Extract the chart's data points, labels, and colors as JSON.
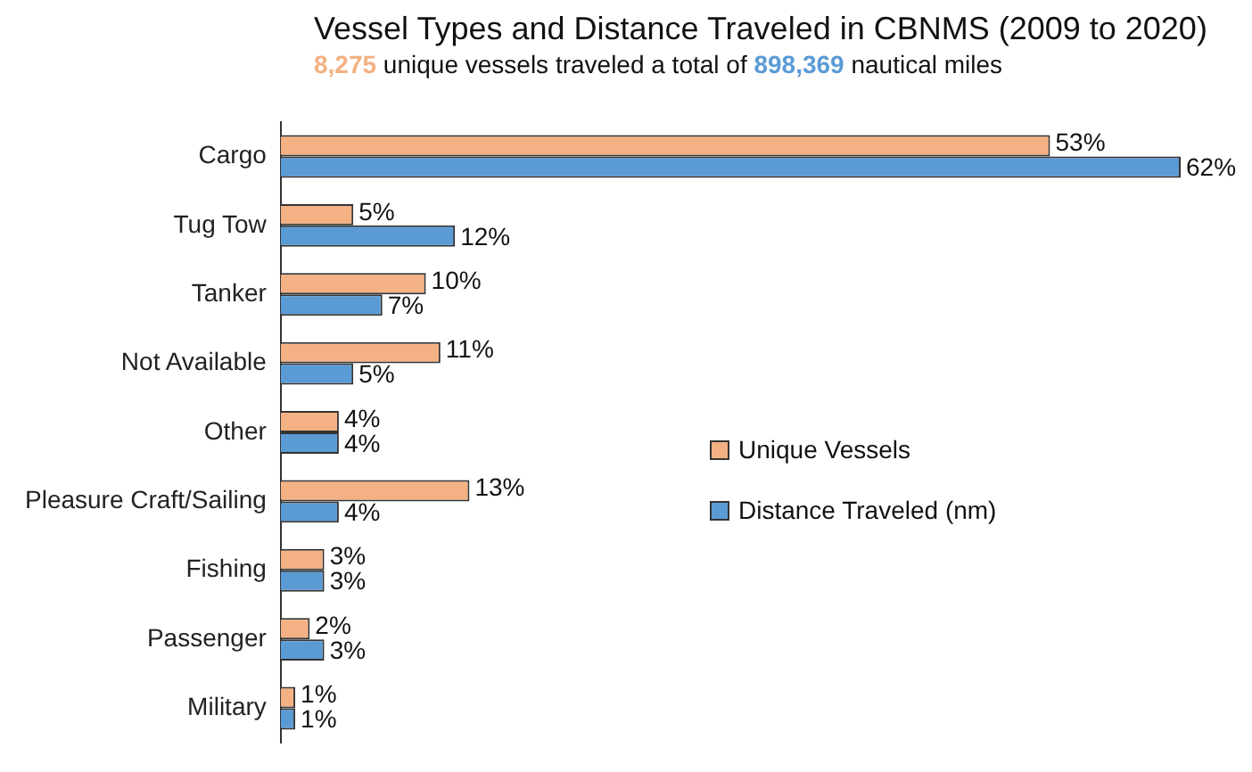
{
  "chart_data": {
    "type": "bar",
    "orientation": "horizontal",
    "title": "Vessel Types and Distance Traveled in CBNMS (2009 to 2020)",
    "subtitle": "8,275 unique vessels traveled a total of 898,369 nautical miles",
    "categories": [
      "Cargo",
      "Tug Tow",
      "Tanker",
      "Not Available",
      "Other",
      "Pleasure Craft/Sailing",
      "Fishing",
      "Passenger",
      "Military"
    ],
    "series": [
      {
        "name": "Unique Vessels",
        "color": "#f4b183",
        "values": [
          53,
          5,
          10,
          11,
          4,
          13,
          3,
          2,
          1
        ],
        "value_labels": [
          "53%",
          "5%",
          "10%",
          "11%",
          "4%",
          "13%",
          "3%",
          "2%",
          "1%"
        ]
      },
      {
        "name": "Distance Traveled (nm)",
        "color": "#5b9bd5",
        "values": [
          62,
          12,
          7,
          5,
          4,
          4,
          3,
          3,
          1
        ],
        "value_labels": [
          "62%",
          "12%",
          "7%",
          "5%",
          "4%",
          "4%",
          "3%",
          "3%",
          "1%"
        ]
      }
    ],
    "legend": "right"
  }
}
